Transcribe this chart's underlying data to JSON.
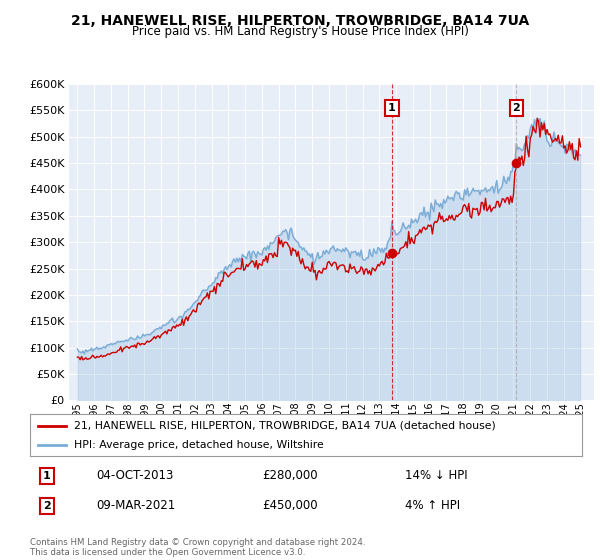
{
  "title": "21, HANEWELL RISE, HILPERTON, TROWBRIDGE, BA14 7UA",
  "subtitle": "Price paid vs. HM Land Registry's House Price Index (HPI)",
  "legend_line1": "21, HANEWELL RISE, HILPERTON, TROWBRIDGE, BA14 7UA (detached house)",
  "legend_line2": "HPI: Average price, detached house, Wiltshire",
  "footnote": "Contains HM Land Registry data © Crown copyright and database right 2024.\nThis data is licensed under the Open Government Licence v3.0.",
  "annotation1": {
    "label": "1",
    "date": "04-OCT-2013",
    "price": "£280,000",
    "pct": "14% ↓ HPI"
  },
  "annotation2": {
    "label": "2",
    "date": "09-MAR-2021",
    "price": "£450,000",
    "pct": "4% ↑ HPI"
  },
  "ylim": [
    0,
    600000
  ],
  "yticks": [
    0,
    50000,
    100000,
    150000,
    200000,
    250000,
    300000,
    350000,
    400000,
    450000,
    500000,
    550000,
    600000
  ],
  "hpi_color": "#7aacd6",
  "price_color": "#cc0000",
  "vline1_color": "#cc0000",
  "vline1_style": "--",
  "vline2_color": "#aaaaaa",
  "vline2_style": "--",
  "background_color": "#e8eef8",
  "sale1_x": 2013.75,
  "sale1_y": 280000,
  "sale2_x": 2021.17,
  "sale2_y": 450000,
  "xlim_left": 1994.5,
  "xlim_right": 2025.8,
  "xtick_years": [
    1995,
    1996,
    1997,
    1998,
    1999,
    2000,
    2001,
    2002,
    2003,
    2004,
    2005,
    2006,
    2007,
    2008,
    2009,
    2010,
    2011,
    2012,
    2013,
    2014,
    2015,
    2016,
    2017,
    2018,
    2019,
    2020,
    2021,
    2022,
    2023,
    2024,
    2025
  ]
}
